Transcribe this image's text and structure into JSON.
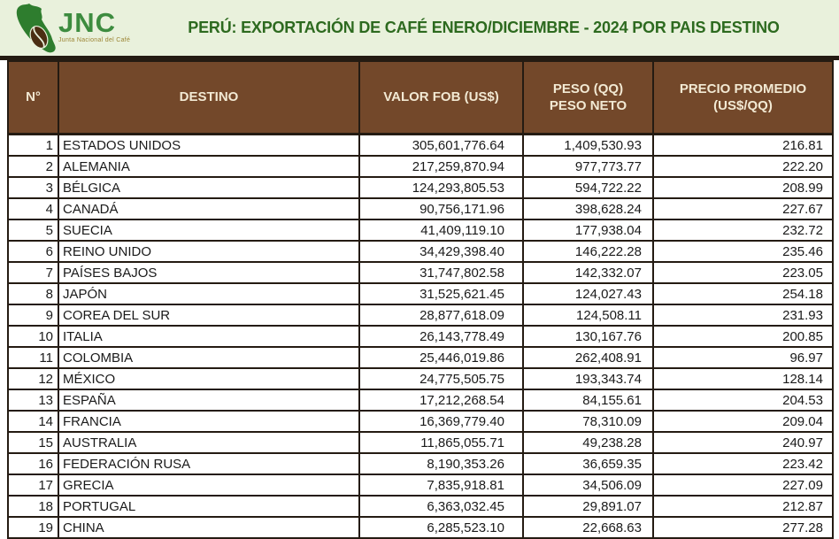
{
  "banner": {
    "background": "#e9f1dc",
    "logo": {
      "text": "JNC",
      "tagline": "Junta Nacional del Café",
      "text_color": "#3d8c3f",
      "map_color": "#2e7d2e",
      "bean_color": "#4b2e13",
      "tagline_color": "#9b8433"
    },
    "title": "PERÚ: EXPORTACIÓN DE CAFÉ ENERO/DICIEMBRE - 2024 POR PAIS DESTINO",
    "title_color": "#2d6a1f"
  },
  "table_style": {
    "header_bg": "#73482a",
    "header_text_color": "#f2e9d3",
    "border_color": "#241b12",
    "row_bg": "#ffffff"
  },
  "chart_data": {
    "type": "table",
    "title": "PERÚ: EXPORTACIÓN DE CAFÉ ENERO/DICIEMBRE - 2024 POR PAIS DESTINO",
    "columns": [
      "N°",
      "DESTINO",
      "VALOR FOB (US$)",
      "PESO (QQ) PESO NETO",
      "PRECIO PROMEDIO (US$/QQ)"
    ],
    "rows": [
      {
        "n": "1",
        "destino": "ESTADOS UNIDOS",
        "valor_fob": "305,601,776.64",
        "peso_qq": "1,409,530.93",
        "precio_promedio": "216.81"
      },
      {
        "n": "2",
        "destino": "ALEMANIA",
        "valor_fob": "217,259,870.94",
        "peso_qq": "977,773.77",
        "precio_promedio": "222.20"
      },
      {
        "n": "3",
        "destino": "BÉLGICA",
        "valor_fob": "124,293,805.53",
        "peso_qq": "594,722.22",
        "precio_promedio": "208.99"
      },
      {
        "n": "4",
        "destino": "CANADÁ",
        "valor_fob": "90,756,171.96",
        "peso_qq": "398,628.24",
        "precio_promedio": "227.67"
      },
      {
        "n": "5",
        "destino": "SUECIA",
        "valor_fob": "41,409,119.10",
        "peso_qq": "177,938.04",
        "precio_promedio": "232.72"
      },
      {
        "n": "6",
        "destino": "REINO UNIDO",
        "valor_fob": "34,429,398.40",
        "peso_qq": "146,222.28",
        "precio_promedio": "235.46"
      },
      {
        "n": "7",
        "destino": "PAÍSES BAJOS",
        "valor_fob": "31,747,802.58",
        "peso_qq": "142,332.07",
        "precio_promedio": "223.05"
      },
      {
        "n": "8",
        "destino": "JAPÓN",
        "valor_fob": "31,525,621.45",
        "peso_qq": "124,027.43",
        "precio_promedio": "254.18"
      },
      {
        "n": "9",
        "destino": "COREA DEL SUR",
        "valor_fob": "28,877,618.09",
        "peso_qq": "124,508.11",
        "precio_promedio": "231.93"
      },
      {
        "n": "10",
        "destino": "ITALIA",
        "valor_fob": "26,143,778.49",
        "peso_qq": "130,167.76",
        "precio_promedio": "200.85"
      },
      {
        "n": "11",
        "destino": "COLOMBIA",
        "valor_fob": "25,446,019.86",
        "peso_qq": "262,408.91",
        "precio_promedio": "96.97"
      },
      {
        "n": "12",
        "destino": "MÉXICO",
        "valor_fob": "24,775,505.75",
        "peso_qq": "193,343.74",
        "precio_promedio": "128.14"
      },
      {
        "n": "13",
        "destino": "ESPAÑA",
        "valor_fob": "17,212,268.54",
        "peso_qq": "84,155.61",
        "precio_promedio": "204.53"
      },
      {
        "n": "14",
        "destino": "FRANCIA",
        "valor_fob": "16,369,779.40",
        "peso_qq": "78,310.09",
        "precio_promedio": "209.04"
      },
      {
        "n": "15",
        "destino": "AUSTRALIA",
        "valor_fob": "11,865,055.71",
        "peso_qq": "49,238.28",
        "precio_promedio": "240.97"
      },
      {
        "n": "16",
        "destino": "FEDERACIÓN RUSA",
        "valor_fob": "8,190,353.26",
        "peso_qq": "36,659.35",
        "precio_promedio": "223.42"
      },
      {
        "n": "17",
        "destino": "GRECIA",
        "valor_fob": "7,835,918.81",
        "peso_qq": "34,506.09",
        "precio_promedio": "227.09"
      },
      {
        "n": "18",
        "destino": "PORTUGAL",
        "valor_fob": "6,363,032.45",
        "peso_qq": "29,891.07",
        "precio_promedio": "212.87"
      },
      {
        "n": "19",
        "destino": "CHINA",
        "valor_fob": "6,285,523.10",
        "peso_qq": "22,668.63",
        "precio_promedio": "277.28"
      }
    ]
  }
}
